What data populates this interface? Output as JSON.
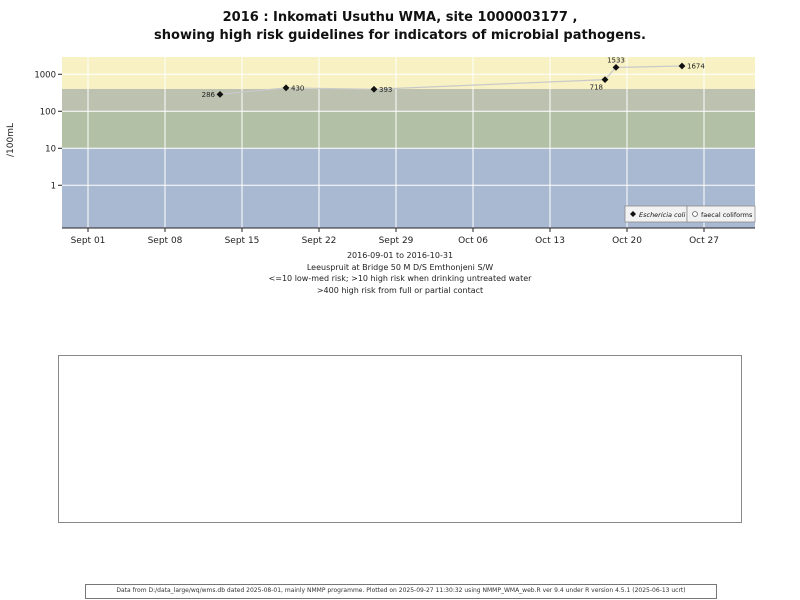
{
  "chart_data": {
    "type": "line-scatter",
    "title_line1": "2016 : Inkomati Usuthu WMA, site 1000003177 ,",
    "title_line2": "showing high risk guidelines for indicators of microbial pathogens.",
    "ylabel": "/100mL",
    "y_scale": "log",
    "y_ticks": [
      1,
      10,
      100,
      1000
    ],
    "x_start": "2016-09-01",
    "x_end": "2016-10-31",
    "x_ticks": [
      {
        "label": "Sept 01",
        "day": 0
      },
      {
        "label": "Sept 08",
        "day": 7
      },
      {
        "label": "Sept 15",
        "day": 14
      },
      {
        "label": "Sept 22",
        "day": 21
      },
      {
        "label": "Sept 29",
        "day": 28
      },
      {
        "label": "Oct 06",
        "day": 35
      },
      {
        "label": "Oct 13",
        "day": 42
      },
      {
        "label": "Oct 20",
        "day": 49
      },
      {
        "label": "Oct 27",
        "day": 56
      }
    ],
    "bands": [
      {
        "name": "high-risk-contact-gt400",
        "from": 400,
        "to": 3000,
        "color": "#f7f1c4"
      },
      {
        "name": "high-risk-100-400",
        "from": 100,
        "to": 400,
        "color": "#bcc1b0"
      },
      {
        "name": "high-risk-10-100",
        "from": 10,
        "to": 100,
        "color": "#b2c0a6"
      },
      {
        "name": "low-med-risk-le10",
        "from": 0.07,
        "to": 10,
        "color": "#a9b9d1"
      }
    ],
    "grid_color": "#ffffff",
    "line_color": "#c9c9c9",
    "marker_color": "#111111",
    "series": [
      {
        "name": "Eschericia coli",
        "marker": "diamond",
        "points": [
          {
            "date": "2016-09-13",
            "value": 286,
            "label_pos": "left"
          },
          {
            "date": "2016-09-19",
            "value": 430,
            "label_pos": "right"
          },
          {
            "date": "2016-09-27",
            "value": 393,
            "label_pos": "right"
          },
          {
            "date": "2016-10-18",
            "value": 718,
            "label_pos": "below-left"
          },
          {
            "date": "2016-10-19",
            "value": 1533,
            "label_pos": "above"
          },
          {
            "date": "2016-10-25",
            "value": 1674,
            "label_pos": "right"
          }
        ]
      }
    ],
    "legend": [
      {
        "label": "Eschericia coli",
        "marker": "diamond",
        "italic": true
      },
      {
        "label": "faecal coliforms",
        "marker": "circle",
        "italic": false
      }
    ]
  },
  "captions": [
    "2016-09-01 to 2016-10-31",
    "Leeuspruit at Bridge 50 M D/S Emthonjeni S/W",
    "<=10 low-med risk; >10 high risk when drinking untreated water",
    ">400 high risk from full or partial contact"
  ],
  "footer": {
    "text": "Data from D:/data_large/wq/wms.db dated 2025-08-01, mainly NMMP programme. Plotted on 2025-09-27 11:30:32 using NMMP_WMA_web.R ver 9.4 under R version 4.5.1 (2025-06-13 ucrt)"
  }
}
